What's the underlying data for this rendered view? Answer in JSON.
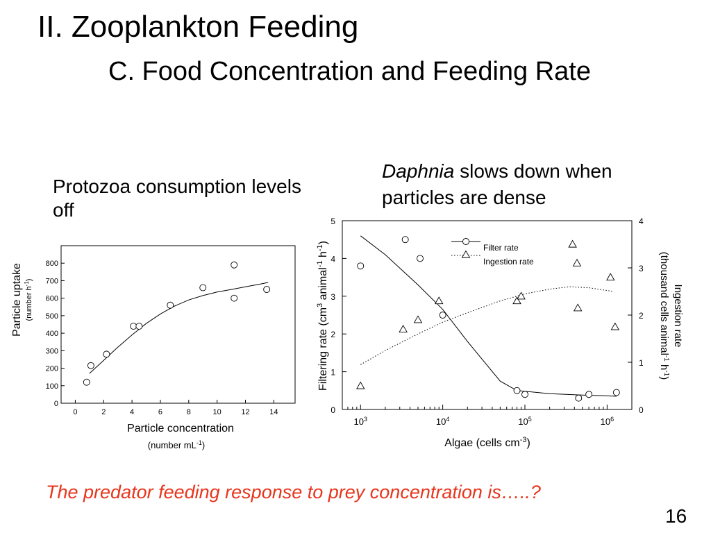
{
  "slide": {
    "title": "II. Zooplankton Feeding",
    "subtitle": "C. Food Concentration and Feeding Rate",
    "left_caption": "Protozoa consumption levels off",
    "right_caption_italic": "Daphnia",
    "right_caption_rest": " slows down when particles are dense",
    "question": "The predator feeding response to prey concentration is…..?",
    "page_number": "16"
  },
  "chart_data": [
    {
      "type": "scatter",
      "xlabel": "Particle concentration",
      "xlabel_units": "(number mL",
      "xlabel_units_sup": "-1",
      "xlabel_units_close": ")",
      "ylabel": "Particle uptake",
      "ylabel_units": "(number h",
      "ylabel_units_sup": "-1",
      "ylabel_units_close": ")",
      "xlim": [
        -1,
        15.5
      ],
      "ylim": [
        0,
        900
      ],
      "xticks": [
        0,
        2,
        4,
        6,
        8,
        10,
        12,
        14
      ],
      "yticks": [
        0,
        100,
        200,
        300,
        400,
        500,
        600,
        700,
        800
      ],
      "points": {
        "x": [
          0.8,
          1.1,
          2.2,
          4.1,
          4.5,
          6.7,
          9.0,
          11.2,
          11.2,
          13.5
        ],
        "y": [
          120,
          215,
          280,
          440,
          440,
          560,
          660,
          790,
          600,
          650
        ]
      },
      "fit_line": {
        "x": [
          1.0,
          2.0,
          3.0,
          4.0,
          5.0,
          6.0,
          7.0,
          8.0,
          9.0,
          10.0,
          11.0,
          12.0,
          13.0,
          13.6
        ],
        "y": [
          170,
          245,
          320,
          390,
          455,
          510,
          555,
          590,
          615,
          635,
          650,
          665,
          680,
          690
        ]
      }
    },
    {
      "type": "scatter",
      "xlabel": "Algae (cells cm",
      "xlabel_sup": "-3",
      "xlabel_close": ")",
      "x_scale": "log",
      "xlim": [
        600,
        2000000
      ],
      "xtick_values": [
        1000,
        10000,
        100000,
        1000000
      ],
      "xtick_base": "10",
      "xtick_exponents": [
        "3",
        "4",
        "5",
        "6"
      ],
      "ylabel_left": "Filtering rate (cm",
      "ylabel_left_sup1": "3",
      "ylabel_left_mid": " animal",
      "ylabel_left_sup2": "-1",
      "ylabel_left_mid2": " h",
      "ylabel_left_sup3": "-1",
      "ylabel_left_close": ")",
      "ylim_left": [
        0,
        5
      ],
      "yticks_left": [
        0,
        1,
        2,
        3,
        4,
        5
      ],
      "ylabel_right_1": "Ingestion rate",
      "ylabel_right_2": "(thousand cells animal",
      "ylabel_right_sup1": "-1",
      "ylabel_right_mid": " h",
      "ylabel_right_sup2": "-1",
      "ylabel_right_close": ")",
      "ylim_right": [
        0,
        4
      ],
      "yticks_right": [
        0,
        1,
        2,
        3,
        4
      ],
      "legend": [
        "Filter rate",
        "Ingestion rate"
      ],
      "legend_position": "top-center",
      "series": [
        {
          "name": "Filter rate",
          "marker": "circle",
          "axis": "left",
          "points": {
            "x": [
              1000,
              3500,
              5300,
              10000,
              80000,
              100000,
              450000,
              600000,
              1300000
            ],
            "y": [
              3.8,
              4.5,
              4.0,
              2.5,
              0.5,
              0.4,
              0.3,
              0.4,
              0.45
            ]
          },
          "curve": {
            "x": [
              1000,
              2000,
              5000,
              10000,
              20000,
              50000,
              80000,
              200000,
              500000,
              1000000,
              1300000
            ],
            "y": [
              4.6,
              4.1,
              3.3,
              2.65,
              1.8,
              0.75,
              0.5,
              0.42,
              0.38,
              0.36,
              0.35
            ]
          }
        },
        {
          "name": "Ingestion rate",
          "marker": "triangle",
          "axis": "right",
          "points": {
            "x": [
              1000,
              3300,
              5000,
              9000,
              80000,
              90000,
              380000,
              430000,
              440000,
              1100000,
              1250000
            ],
            "y": [
              0.5,
              1.7,
              1.9,
              2.3,
              2.3,
              2.4,
              3.5,
              3.1,
              2.15,
              2.8,
              1.75
            ]
          },
          "curve": {
            "x": [
              1000,
              2000,
              5000,
              10000,
              20000,
              50000,
              100000,
              200000,
              350000,
              600000,
              1000000,
              1200000
            ],
            "y": [
              0.95,
              1.25,
              1.6,
              1.85,
              2.05,
              2.3,
              2.45,
              2.55,
              2.6,
              2.58,
              2.52,
              2.5
            ]
          }
        }
      ]
    }
  ]
}
